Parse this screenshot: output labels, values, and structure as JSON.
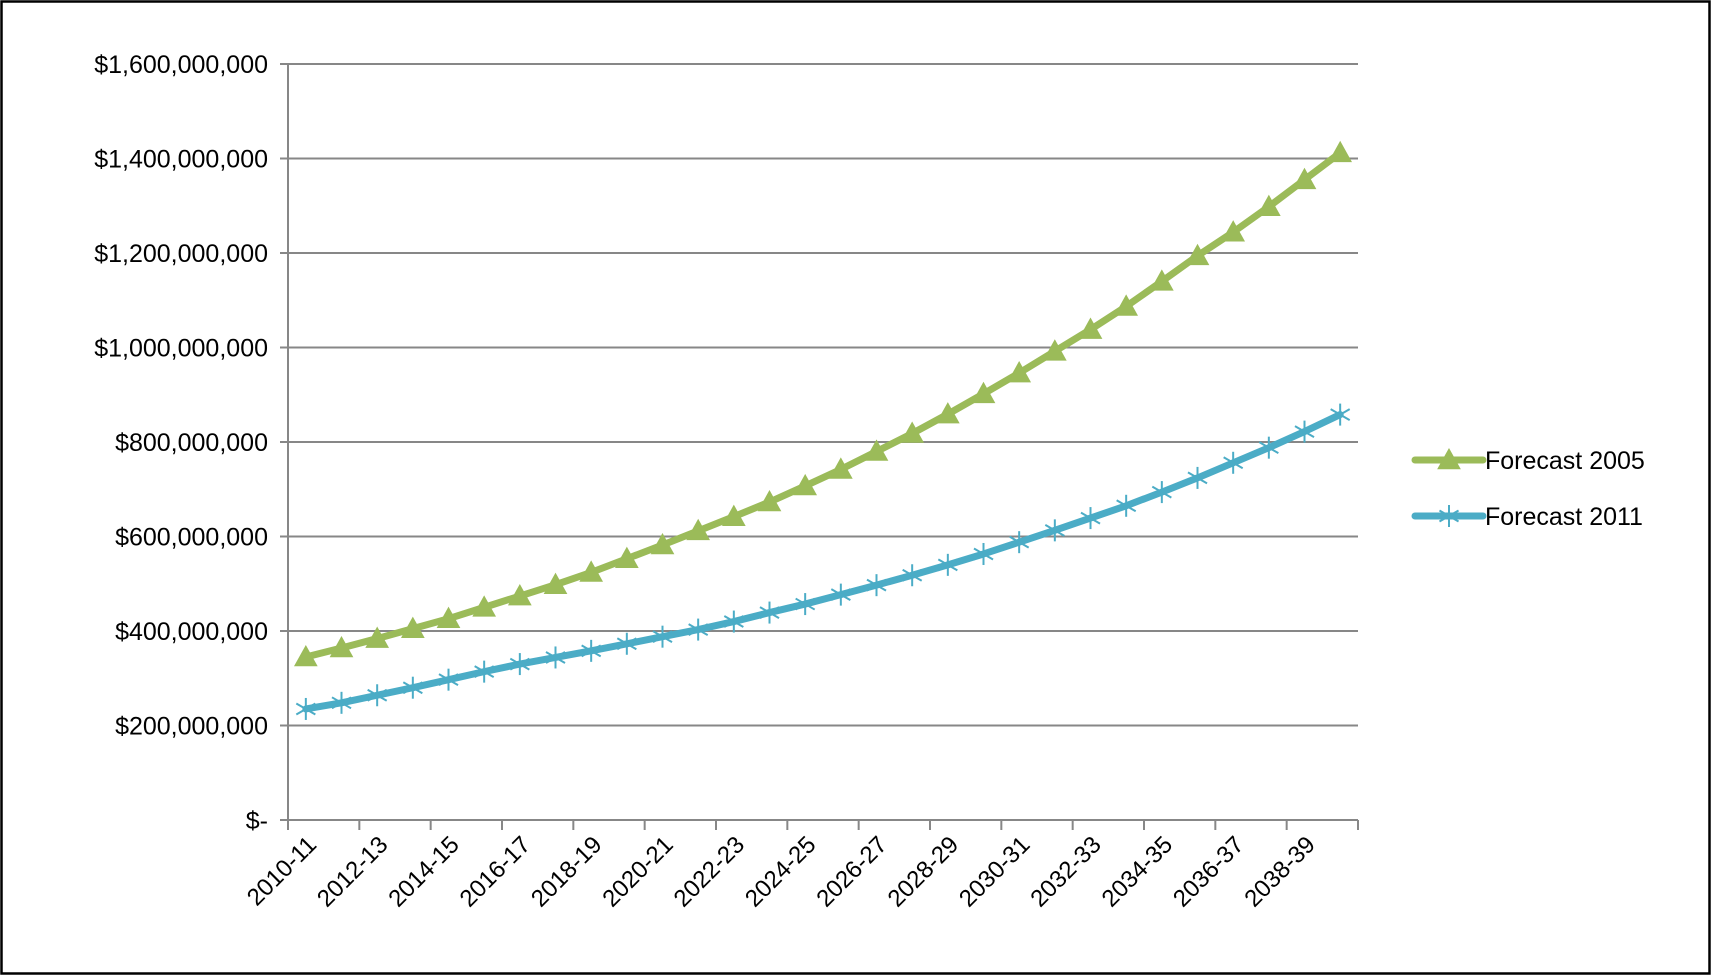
{
  "chart_data": {
    "type": "line",
    "title": "",
    "xlabel": "",
    "ylabel": "",
    "ylim": [
      0,
      1600000000
    ],
    "yticks": [
      0,
      200000000,
      400000000,
      600000000,
      800000000,
      1000000000,
      1200000000,
      1400000000,
      1600000000
    ],
    "ytick_labels": [
      "$-",
      "$200,000,000",
      "$400,000,000",
      "$600,000,000",
      "$800,000,000",
      "$1,000,000,000",
      "$1,200,000,000",
      "$1,400,000,000",
      "$1,600,000,000"
    ],
    "categories": [
      "2010-11",
      "2011-12",
      "2012-13",
      "2013-14",
      "2014-15",
      "2015-16",
      "2016-17",
      "2017-18",
      "2018-19",
      "2019-20",
      "2020-21",
      "2021-22",
      "2022-23",
      "2023-24",
      "2024-25",
      "2025-26",
      "2026-27",
      "2027-28",
      "2028-29",
      "2029-30",
      "2030-31",
      "2031-32",
      "2032-33",
      "2033-34",
      "2034-35",
      "2035-36",
      "2036-37",
      "2037-38",
      "2038-39",
      "2039-40"
    ],
    "xtick_labels_shown": [
      "2010-11",
      "2012-13",
      "2014-15",
      "2016-17",
      "2018-19",
      "2020-21",
      "2022-23",
      "2024-25",
      "2026-27",
      "2028-29",
      "2030-31",
      "2032-33",
      "2034-35",
      "2036-37",
      "2038-39"
    ],
    "grid": "horizontal",
    "legend_position": "right",
    "series": [
      {
        "name": "Forecast 2005",
        "color": "#9bbb59",
        "marker": "triangle",
        "values": [
          345000000,
          364000000,
          384000000,
          405000000,
          426000000,
          450000000,
          474000000,
          498000000,
          524000000,
          553000000,
          582000000,
          612000000,
          642000000,
          673000000,
          707000000,
          742000000,
          780000000,
          818000000,
          859000000,
          902000000,
          946000000,
          992000000,
          1038000000,
          1087000000,
          1140000000,
          1194000000,
          1244000000,
          1298000000,
          1355000000,
          1412000000
        ]
      },
      {
        "name": "Forecast 2011",
        "color": "#4bacc6",
        "marker": "asterisk",
        "values": [
          235000000,
          248000000,
          264000000,
          280000000,
          297000000,
          314000000,
          330000000,
          344000000,
          358000000,
          373000000,
          388000000,
          403000000,
          420000000,
          439000000,
          457000000,
          477000000,
          497000000,
          518000000,
          540000000,
          563000000,
          588000000,
          613000000,
          639000000,
          665000000,
          694000000,
          724000000,
          756000000,
          788000000,
          822000000,
          858000000
        ]
      }
    ]
  }
}
